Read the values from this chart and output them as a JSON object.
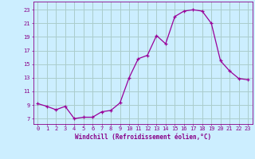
{
  "x": [
    0,
    1,
    2,
    3,
    4,
    5,
    6,
    7,
    8,
    9,
    10,
    11,
    12,
    13,
    14,
    15,
    16,
    17,
    18,
    19,
    20,
    21,
    22,
    23
  ],
  "y": [
    9.2,
    8.8,
    8.3,
    8.8,
    7.0,
    7.2,
    7.2,
    8.0,
    8.2,
    9.3,
    13.0,
    15.8,
    16.3,
    19.2,
    18.0,
    22.0,
    22.8,
    23.0,
    22.8,
    21.0,
    15.5,
    14.0,
    12.9,
    12.7
  ],
  "line_color": "#990099",
  "marker": "+",
  "bg_color": "#cceeff",
  "grid_color": "#aacccc",
  "xlabel": "Windchill (Refroidissement éolien,°C)",
  "yticks": [
    7,
    9,
    11,
    13,
    15,
    17,
    19,
    21,
    23
  ],
  "xlim": [
    -0.5,
    23.5
  ],
  "ylim": [
    6.2,
    24.2
  ],
  "text_color": "#880088",
  "font": "monospace",
  "tick_fontsize": 5.0,
  "xlabel_fontsize": 5.5
}
